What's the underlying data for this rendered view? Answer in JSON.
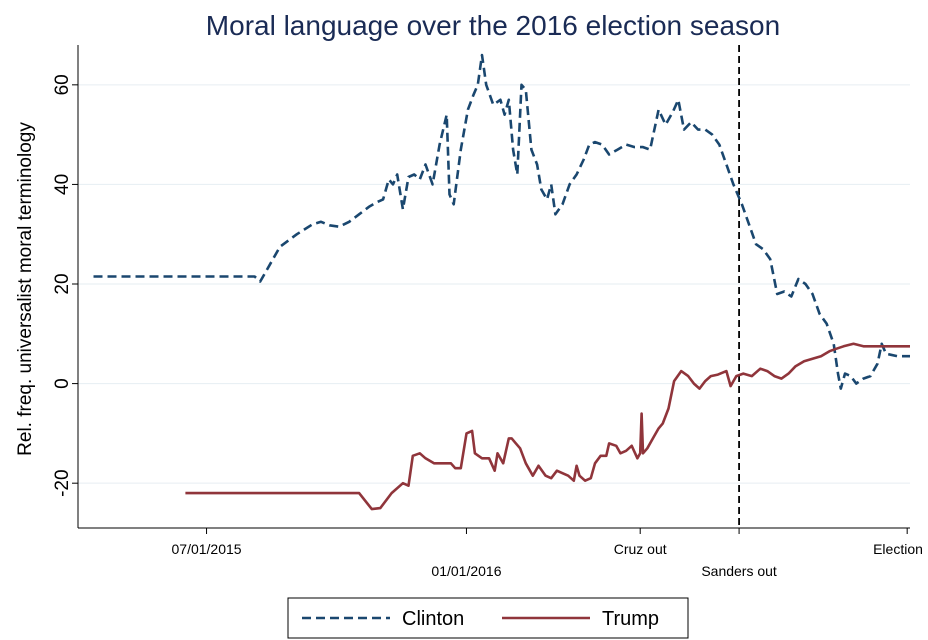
{
  "chart_data": {
    "type": "line",
    "title": "Moral language over the 2016 election season",
    "ylabel": "Rel. freq. universalist moral terminology",
    "xlabel": "",
    "ylim": [
      -29,
      68
    ],
    "xlim": [
      "2015-04-01",
      "2016-11-10"
    ],
    "yticks": [
      60,
      40,
      20,
      0,
      -20
    ],
    "ytick_labels": [
      "60",
      "40",
      "20",
      "0",
      "-20"
    ],
    "grid": true,
    "legend": "bottom",
    "xticks": [
      {
        "x": "2015-07-01",
        "labels": [
          "07/01/2015"
        ]
      },
      {
        "x": "2016-01-01",
        "labels": [
          "",
          "01/01/2016"
        ]
      },
      {
        "x": "2016-05-03",
        "labels": [
          "Cruz out"
        ]
      },
      {
        "x": "2016-07-12",
        "labels": [
          "",
          "Sanders out"
        ]
      },
      {
        "x": "2016-11-08",
        "labels": [
          "Election"
        ]
      }
    ],
    "vline": {
      "x": "2016-07-12",
      "style": "dashed",
      "color": "#000000"
    },
    "series": [
      {
        "name": "Clinton",
        "color": "#1a476f",
        "style": "dashed",
        "points": [
          [
            "2015-04-12",
            21.5
          ],
          [
            "2015-05-15",
            21.5
          ],
          [
            "2015-06-20",
            21.5
          ],
          [
            "2015-07-25",
            21.5
          ],
          [
            "2015-08-04",
            21.5
          ],
          [
            "2015-08-08",
            20.5
          ],
          [
            "2015-08-13",
            23
          ],
          [
            "2015-08-22",
            27.5
          ],
          [
            "2015-09-03",
            30
          ],
          [
            "2015-09-14",
            32
          ],
          [
            "2015-09-20",
            32.5
          ],
          [
            "2015-09-26",
            31.8
          ],
          [
            "2015-10-03",
            31.5
          ],
          [
            "2015-10-10",
            32.5
          ],
          [
            "2015-10-17",
            34
          ],
          [
            "2015-10-24",
            35.5
          ],
          [
            "2015-10-30",
            36.5
          ],
          [
            "2015-11-03",
            37
          ],
          [
            "2015-11-07",
            41
          ],
          [
            "2015-11-10",
            40
          ],
          [
            "2015-11-13",
            42
          ],
          [
            "2015-11-17",
            35
          ],
          [
            "2015-11-21",
            41.5
          ],
          [
            "2015-11-25",
            42
          ],
          [
            "2015-11-29",
            41
          ],
          [
            "2015-12-03",
            44
          ],
          [
            "2015-12-08",
            40
          ],
          [
            "2015-12-13",
            48
          ],
          [
            "2015-12-18",
            54
          ],
          [
            "2015-12-20",
            38
          ],
          [
            "2015-12-23",
            36
          ],
          [
            "2015-12-28",
            47
          ],
          [
            "2016-01-02",
            55
          ],
          [
            "2016-01-06",
            58
          ],
          [
            "2016-01-09",
            60
          ],
          [
            "2016-01-12",
            66
          ],
          [
            "2016-01-15",
            60
          ],
          [
            "2016-01-20",
            56
          ],
          [
            "2016-01-25",
            57
          ],
          [
            "2016-01-28",
            54
          ],
          [
            "2016-01-31",
            57
          ],
          [
            "2016-02-03",
            47
          ],
          [
            "2016-02-06",
            42
          ],
          [
            "2016-02-09",
            60
          ],
          [
            "2016-02-12",
            59
          ],
          [
            "2016-02-16",
            47
          ],
          [
            "2016-02-20",
            44
          ],
          [
            "2016-02-23",
            39
          ],
          [
            "2016-02-27",
            37
          ],
          [
            "2016-03-01",
            40
          ],
          [
            "2016-03-04",
            34
          ],
          [
            "2016-03-09",
            36
          ],
          [
            "2016-03-14",
            40
          ],
          [
            "2016-03-19",
            42
          ],
          [
            "2016-03-24",
            45
          ],
          [
            "2016-03-28",
            48
          ],
          [
            "2016-04-01",
            48.5
          ],
          [
            "2016-04-06",
            48
          ],
          [
            "2016-04-11",
            46
          ],
          [
            "2016-04-17",
            47
          ],
          [
            "2016-04-23",
            48
          ],
          [
            "2016-04-29",
            47.5
          ],
          [
            "2016-05-05",
            47.5
          ],
          [
            "2016-05-10",
            47
          ],
          [
            "2016-05-16",
            55
          ],
          [
            "2016-05-21",
            52
          ],
          [
            "2016-05-26",
            54.5
          ],
          [
            "2016-05-30",
            57
          ],
          [
            "2016-06-03",
            51
          ],
          [
            "2016-06-08",
            52.5
          ],
          [
            "2016-06-13",
            51
          ],
          [
            "2016-06-18",
            51
          ],
          [
            "2016-06-23",
            50
          ],
          [
            "2016-06-28",
            48
          ],
          [
            "2016-07-03",
            44
          ],
          [
            "2016-07-08",
            40
          ],
          [
            "2016-07-14",
            36
          ],
          [
            "2016-07-19",
            32
          ],
          [
            "2016-07-24",
            28
          ],
          [
            "2016-07-29",
            27
          ],
          [
            "2016-08-03",
            25
          ],
          [
            "2016-08-08",
            18
          ],
          [
            "2016-08-13",
            18.5
          ],
          [
            "2016-08-18",
            17.5
          ],
          [
            "2016-08-23",
            21
          ],
          [
            "2016-08-28",
            20
          ],
          [
            "2016-09-02",
            18
          ],
          [
            "2016-09-07",
            14
          ],
          [
            "2016-09-12",
            12
          ],
          [
            "2016-09-17",
            8
          ],
          [
            "2016-09-20",
            2
          ],
          [
            "2016-09-22",
            -1
          ],
          [
            "2016-09-25",
            2
          ],
          [
            "2016-09-29",
            1.5
          ],
          [
            "2016-10-03",
            0
          ],
          [
            "2016-10-08",
            1
          ],
          [
            "2016-10-13",
            1.5
          ],
          [
            "2016-10-18",
            4
          ],
          [
            "2016-10-21",
            8
          ],
          [
            "2016-10-24",
            6
          ],
          [
            "2016-11-01",
            5.5
          ],
          [
            "2016-11-10",
            5.5
          ]
        ]
      },
      {
        "name": "Trump",
        "color": "#90353b",
        "style": "solid",
        "points": [
          [
            "2015-06-16",
            -22
          ],
          [
            "2015-07-30",
            -22
          ],
          [
            "2015-09-10",
            -22
          ],
          [
            "2015-10-17",
            -22
          ],
          [
            "2015-10-26",
            -25.2
          ],
          [
            "2015-11-01",
            -25
          ],
          [
            "2015-11-09",
            -22
          ],
          [
            "2015-11-17",
            -20
          ],
          [
            "2015-11-21",
            -20.5
          ],
          [
            "2015-11-24",
            -14.5
          ],
          [
            "2015-11-29",
            -14
          ],
          [
            "2015-12-03",
            -15
          ],
          [
            "2015-12-09",
            -16
          ],
          [
            "2015-12-16",
            -16
          ],
          [
            "2015-12-21",
            -16
          ],
          [
            "2015-12-24",
            -17
          ],
          [
            "2015-12-28",
            -17
          ],
          [
            "2016-01-01",
            -10
          ],
          [
            "2016-01-05",
            -9.5
          ],
          [
            "2016-01-07",
            -14
          ],
          [
            "2016-01-12",
            -15
          ],
          [
            "2016-01-17",
            -15
          ],
          [
            "2016-01-21",
            -17.5
          ],
          [
            "2016-01-23",
            -14
          ],
          [
            "2016-01-27",
            -16
          ],
          [
            "2016-01-31",
            -11
          ],
          [
            "2016-02-02",
            -11
          ],
          [
            "2016-02-05",
            -12
          ],
          [
            "2016-02-08",
            -13
          ],
          [
            "2016-02-12",
            -16
          ],
          [
            "2016-02-17",
            -18.5
          ],
          [
            "2016-02-21",
            -16.5
          ],
          [
            "2016-02-26",
            -18.5
          ],
          [
            "2016-03-01",
            -19
          ],
          [
            "2016-03-05",
            -17.5
          ],
          [
            "2016-03-09",
            -18
          ],
          [
            "2016-03-13",
            -18.5
          ],
          [
            "2016-03-17",
            -19.5
          ],
          [
            "2016-03-19",
            -16.5
          ],
          [
            "2016-03-21",
            -18.5
          ],
          [
            "2016-03-25",
            -19.5
          ],
          [
            "2016-03-29",
            -19
          ],
          [
            "2016-04-01",
            -16
          ],
          [
            "2016-04-05",
            -14.5
          ],
          [
            "2016-04-09",
            -14.5
          ],
          [
            "2016-04-11",
            -12
          ],
          [
            "2016-04-16",
            -12.5
          ],
          [
            "2016-04-19",
            -14
          ],
          [
            "2016-04-23",
            -13.5
          ],
          [
            "2016-04-27",
            -12.5
          ],
          [
            "2016-05-01",
            -15
          ],
          [
            "2016-05-03",
            -14
          ],
          [
            "2016-05-04",
            -6
          ],
          [
            "2016-05-05",
            -14
          ],
          [
            "2016-05-08",
            -13
          ],
          [
            "2016-05-12",
            -11
          ],
          [
            "2016-05-16",
            -9
          ],
          [
            "2016-05-19",
            -8
          ],
          [
            "2016-05-23",
            -5
          ],
          [
            "2016-05-27",
            0.5
          ],
          [
            "2016-06-01",
            2.5
          ],
          [
            "2016-06-06",
            1.5
          ],
          [
            "2016-06-10",
            0
          ],
          [
            "2016-06-14",
            -1
          ],
          [
            "2016-06-18",
            0.5
          ],
          [
            "2016-06-22",
            1.5
          ],
          [
            "2016-06-27",
            1.8
          ],
          [
            "2016-07-03",
            2.5
          ],
          [
            "2016-07-06",
            -0.5
          ],
          [
            "2016-07-10",
            1.5
          ],
          [
            "2016-07-15",
            2
          ],
          [
            "2016-07-21",
            1.5
          ],
          [
            "2016-07-27",
            3
          ],
          [
            "2016-08-01",
            2.5
          ],
          [
            "2016-08-06",
            1.5
          ],
          [
            "2016-08-11",
            1
          ],
          [
            "2016-08-16",
            2
          ],
          [
            "2016-08-21",
            3.5
          ],
          [
            "2016-08-27",
            4.5
          ],
          [
            "2016-09-02",
            5
          ],
          [
            "2016-09-08",
            5.5
          ],
          [
            "2016-09-14",
            6.5
          ],
          [
            "2016-09-19",
            7
          ],
          [
            "2016-09-24",
            7.5
          ],
          [
            "2016-10-01",
            8
          ],
          [
            "2016-10-08",
            7.5
          ],
          [
            "2016-10-15",
            7.5
          ],
          [
            "2016-10-22",
            7.5
          ],
          [
            "2016-10-29",
            7.5
          ],
          [
            "2016-11-10",
            7.5
          ]
        ]
      }
    ]
  }
}
